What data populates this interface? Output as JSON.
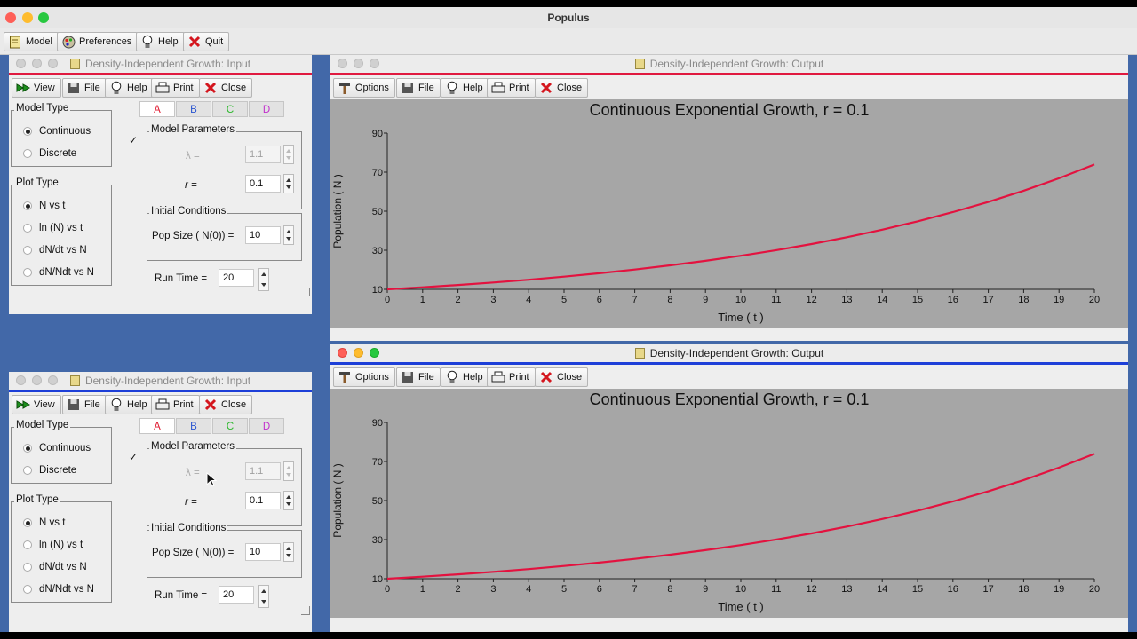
{
  "app": {
    "title": "Populus"
  },
  "app_toolbar": [
    {
      "label": "Model",
      "icon": "model-doc-icon"
    },
    {
      "label": "Preferences",
      "icon": "preferences-icon"
    },
    {
      "label": "Help",
      "icon": "lightbulb-icon"
    },
    {
      "label": "Quit",
      "icon": "red-x-icon"
    }
  ],
  "input_window": {
    "title": "Density-Independent Growth: Input",
    "toolbar": [
      {
        "label": "View",
        "icon": "double-arrow-icon"
      },
      {
        "label": "File",
        "icon": "floppy-icon"
      },
      {
        "label": "Help",
        "icon": "lightbulb-icon"
      },
      {
        "label": "Print",
        "icon": "printer-icon"
      },
      {
        "label": "Close",
        "icon": "red-x-icon"
      }
    ],
    "model_type": {
      "label": "Model Type",
      "options": [
        "Continuous",
        "Discrete"
      ],
      "selected": "Continuous"
    },
    "plot_type": {
      "label": "Plot Type",
      "options": [
        "N vs t",
        "ln (N) vs t",
        "dN/dt vs N",
        "dN/Ndt vs N"
      ],
      "selected": "N vs t"
    },
    "tabs": [
      {
        "label": "A",
        "color": "#e0192f"
      },
      {
        "label": "B",
        "color": "#2a55d0"
      },
      {
        "label": "C",
        "color": "#2fb82f"
      },
      {
        "label": "D",
        "color": "#c22fcc"
      }
    ],
    "model_parameters": {
      "label": "Model Parameters",
      "checked": "✓",
      "lambda_label": "λ =",
      "lambda_value": "1.1",
      "r_label": "r =",
      "r_value": "0.1"
    },
    "initial_conditions": {
      "label": "Initial Conditions",
      "pop_label": "Pop Size ( N(0)) =",
      "pop_value": "10"
    },
    "run_time": {
      "label": "Run Time =",
      "value": "20"
    }
  },
  "output_window": {
    "title": "Density-Independent Growth: Output",
    "toolbar": [
      {
        "label": "Options",
        "icon": "hammer-icon"
      },
      {
        "label": "File",
        "icon": "floppy-icon"
      },
      {
        "label": "Help",
        "icon": "lightbulb-icon"
      },
      {
        "label": "Print",
        "icon": "printer-icon"
      },
      {
        "label": "Close",
        "icon": "red-x-icon"
      }
    ]
  },
  "colors": {
    "accent_red": "#e0193f",
    "accent_blue": "#1d3fd8",
    "plot_bg": "#a6a6a6",
    "curve": "#e3123f"
  },
  "chart_data": [
    {
      "type": "line",
      "title": "Continuous Exponential Growth, r = 0.1",
      "xlabel": "Time ( t )",
      "ylabel": "Population ( N )",
      "xlim": [
        0,
        20
      ],
      "ylim": [
        10,
        90
      ],
      "xticks": [
        0,
        1,
        2,
        3,
        4,
        5,
        6,
        7,
        8,
        9,
        10,
        11,
        12,
        13,
        14,
        15,
        16,
        17,
        18,
        19,
        20
      ],
      "yticks": [
        10,
        30,
        50,
        70,
        90
      ],
      "grid": false,
      "series": [
        {
          "x": [
            0,
            1,
            2,
            3,
            4,
            5,
            6,
            7,
            8,
            9,
            10,
            11,
            12,
            13,
            14,
            15,
            16,
            17,
            18,
            19,
            20
          ],
          "values": [
            10,
            11.05,
            12.21,
            13.5,
            14.92,
            16.49,
            18.22,
            20.14,
            22.26,
            24.6,
            27.18,
            30.04,
            33.2,
            36.69,
            40.55,
            44.82,
            49.53,
            54.74,
            60.5,
            66.86,
            73.89
          ]
        }
      ]
    },
    {
      "type": "line",
      "title": "Continuous Exponential Growth, r = 0.1",
      "xlabel": "Time ( t )",
      "ylabel": "Population ( N )",
      "xlim": [
        0,
        20
      ],
      "ylim": [
        10,
        90
      ],
      "xticks": [
        0,
        1,
        2,
        3,
        4,
        5,
        6,
        7,
        8,
        9,
        10,
        11,
        12,
        13,
        14,
        15,
        16,
        17,
        18,
        19,
        20
      ],
      "yticks": [
        10,
        30,
        50,
        70,
        90
      ],
      "grid": false,
      "series": [
        {
          "x": [
            0,
            1,
            2,
            3,
            4,
            5,
            6,
            7,
            8,
            9,
            10,
            11,
            12,
            13,
            14,
            15,
            16,
            17,
            18,
            19,
            20
          ],
          "values": [
            10,
            11.05,
            12.21,
            13.5,
            14.92,
            16.49,
            18.22,
            20.14,
            22.26,
            24.6,
            27.18,
            30.04,
            33.2,
            36.69,
            40.55,
            44.82,
            49.53,
            54.74,
            60.5,
            66.86,
            73.89
          ]
        }
      ]
    }
  ]
}
